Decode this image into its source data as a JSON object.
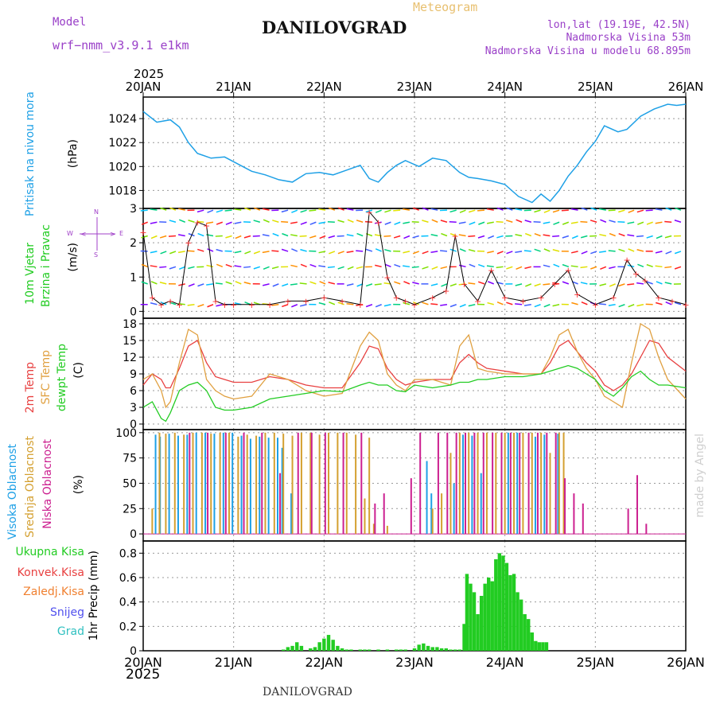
{
  "header": {
    "model_label": "Model",
    "model_name": "wrf−nmm_v3.9.1  e1km",
    "title": "DANILOVGRAD",
    "product": "Meteogram",
    "lonlat": "lon,lat (19.19E, 42.5N)",
    "elevation": "Nadmorska Visina 53m",
    "model_elevation": "Nadmorska Visina u modelu 68.895m",
    "year": "2025",
    "credit": "made by Angel",
    "footer_title": "DANILOVGRAD"
  },
  "colors": {
    "pressure": "#1ea0e6",
    "temp2m": "#e84040",
    "sfc_temp": "#e0a040",
    "dewpt": "#22cc22",
    "cloud_high": "#1ea0e6",
    "cloud_mid": "#d4a030",
    "cloud_low": "#cc2090",
    "precip_total": "#22cc22",
    "precip_conv": "#e84040",
    "precip_frozen": "#f08030",
    "snow": "#5050ee",
    "graupel": "#30c0c0",
    "model_text": "#9a40c8"
  },
  "chart_data": [
    {
      "type": "line",
      "id": "pressure",
      "ylabel_main": "Pritisak na nivou mora",
      "ylabel_unit": "(hPa)",
      "x_ticks": [
        "20JAN",
        "21JAN",
        "22JAN",
        "23JAN",
        "24JAN",
        "25JAN",
        "26JAN"
      ],
      "y_ticks": [
        "1018",
        "1020",
        "1022",
        "1024"
      ],
      "ylim": [
        1016.5,
        1025.8
      ],
      "grid": true,
      "series": [
        {
          "x": [
            0,
            0.15,
            0.3,
            0.4,
            0.5,
            0.6,
            0.75,
            0.9,
            1.0,
            1.2,
            1.35,
            1.5,
            1.65,
            1.8,
            1.95,
            2.1,
            2.25,
            2.4,
            2.5,
            2.6,
            2.7,
            2.8,
            2.9,
            3.05,
            3.2,
            3.35,
            3.5,
            3.6,
            3.7,
            3.85,
            4.0,
            4.15,
            4.3,
            4.4,
            4.5,
            4.6,
            4.7,
            4.8,
            4.9,
            5.0,
            5.1,
            5.25,
            5.35,
            5.5,
            5.65,
            5.8,
            5.9,
            6.0
          ],
          "y": [
            1024.6,
            1023.7,
            1023.9,
            1023.3,
            1022.0,
            1021.1,
            1020.7,
            1020.8,
            1020.4,
            1019.6,
            1019.3,
            1018.9,
            1018.7,
            1019.4,
            1019.5,
            1019.3,
            1019.7,
            1020.1,
            1019.0,
            1018.7,
            1019.5,
            1020.1,
            1020.5,
            1020.0,
            1020.7,
            1020.5,
            1019.5,
            1019.1,
            1019.0,
            1018.8,
            1018.5,
            1017.5,
            1017.0,
            1017.7,
            1017.1,
            1018.0,
            1019.2,
            1020.1,
            1021.2,
            1022.1,
            1023.4,
            1022.9,
            1023.1,
            1024.2,
            1024.8,
            1025.2,
            1025.1,
            1025.2
          ]
        }
      ]
    },
    {
      "type": "line",
      "id": "wind",
      "ylabel_main": "10m Vjetar",
      "ylabel_main2": "Brzina i Pravac",
      "ylabel_unit": "(m/s)",
      "compass": {
        "n": "N",
        "w": "W",
        "e": "E",
        "s": "S"
      },
      "y_ticks": [
        "0",
        "1",
        "2",
        "3"
      ],
      "ylim": [
        -0.2,
        3.0
      ],
      "grid": true,
      "series": [
        {
          "x": [
            0,
            0.1,
            0.2,
            0.3,
            0.4,
            0.5,
            0.6,
            0.7,
            0.8,
            0.9,
            1.0,
            1.2,
            1.4,
            1.6,
            1.8,
            2.0,
            2.2,
            2.4,
            2.5,
            2.6,
            2.7,
            2.8,
            2.9,
            3.0,
            3.2,
            3.35,
            3.45,
            3.55,
            3.7,
            3.85,
            4.0,
            4.2,
            4.4,
            4.55,
            4.7,
            4.8,
            5.0,
            5.2,
            5.35,
            5.45,
            5.55,
            5.7,
            5.85,
            6.0
          ],
          "y": [
            2.3,
            0.4,
            0.2,
            0.3,
            0.2,
            2.0,
            2.6,
            2.5,
            0.3,
            0.2,
            0.2,
            0.2,
            0.2,
            0.3,
            0.3,
            0.4,
            0.3,
            0.2,
            2.9,
            2.6,
            1.0,
            0.4,
            0.3,
            0.2,
            0.4,
            0.6,
            2.2,
            0.8,
            0.3,
            1.2,
            0.4,
            0.3,
            0.4,
            0.8,
            1.2,
            0.5,
            0.2,
            0.4,
            1.5,
            1.1,
            0.9,
            0.4,
            0.3,
            0.2
          ]
        }
      ]
    },
    {
      "type": "line",
      "id": "temperature",
      "ylabel_a": "2m Temp",
      "ylabel_b": "SFC Temp",
      "ylabel_c": "dewpt Temp",
      "ylabel_unit": "(C)",
      "y_ticks": [
        "0",
        "3",
        "6",
        "9",
        "12",
        "15",
        "18"
      ],
      "ylim": [
        -1,
        19
      ],
      "grid": true,
      "series": [
        {
          "name": "2m Temp",
          "x": [
            0,
            0.1,
            0.2,
            0.25,
            0.3,
            0.4,
            0.5,
            0.6,
            0.7,
            0.8,
            0.9,
            1.0,
            1.2,
            1.4,
            1.6,
            1.8,
            2.0,
            2.2,
            2.4,
            2.5,
            2.6,
            2.7,
            2.8,
            2.9,
            3.0,
            3.2,
            3.4,
            3.5,
            3.6,
            3.7,
            3.8,
            4.0,
            4.2,
            4.4,
            4.5,
            4.6,
            4.7,
            4.8,
            4.9,
            5.0,
            5.1,
            5.2,
            5.3,
            5.4,
            5.5,
            5.6,
            5.7,
            5.8,
            6.0
          ],
          "y": [
            7,
            9,
            8,
            6.5,
            6.5,
            10,
            14,
            15,
            11,
            8.5,
            8,
            7.5,
            7.5,
            8.5,
            8,
            7,
            6.5,
            6.5,
            11,
            14,
            13.5,
            10,
            8,
            7,
            7.5,
            8,
            8,
            11,
            12.5,
            11,
            10,
            9.5,
            9,
            9,
            11,
            14,
            15,
            13,
            11,
            9.5,
            7,
            6,
            7,
            9,
            12,
            15,
            14.5,
            12,
            9.5
          ]
        },
        {
          "name": "SFC Temp",
          "x": [
            0,
            0.1,
            0.2,
            0.25,
            0.3,
            0.4,
            0.5,
            0.6,
            0.7,
            0.8,
            0.9,
            1.0,
            1.2,
            1.4,
            1.6,
            1.8,
            2.0,
            2.2,
            2.4,
            2.5,
            2.6,
            2.7,
            2.8,
            2.9,
            3.0,
            3.2,
            3.4,
            3.5,
            3.6,
            3.7,
            3.8,
            4.0,
            4.2,
            4.4,
            4.5,
            4.6,
            4.7,
            4.8,
            4.9,
            5.0,
            5.1,
            5.2,
            5.3,
            5.4,
            5.5,
            5.6,
            5.7,
            5.8,
            6.0
          ],
          "y": [
            8,
            9,
            6,
            3,
            4,
            11,
            17,
            16,
            8,
            6,
            5,
            4.5,
            5,
            9,
            8,
            6,
            5,
            5.5,
            14,
            16.5,
            15,
            9,
            7,
            6,
            8,
            8,
            7,
            14,
            16,
            10,
            9.5,
            9,
            9,
            9,
            12,
            16,
            17,
            13,
            10,
            8,
            5,
            4,
            3,
            11,
            18,
            17,
            12,
            8,
            4.5
          ]
        },
        {
          "name": "dewpt Temp",
          "x": [
            0,
            0.1,
            0.2,
            0.25,
            0.3,
            0.4,
            0.5,
            0.6,
            0.7,
            0.8,
            0.9,
            1.0,
            1.2,
            1.4,
            1.6,
            1.8,
            2.0,
            2.2,
            2.4,
            2.5,
            2.6,
            2.7,
            2.8,
            2.9,
            3.0,
            3.2,
            3.4,
            3.5,
            3.6,
            3.7,
            3.8,
            4.0,
            4.2,
            4.4,
            4.5,
            4.6,
            4.7,
            4.8,
            4.9,
            5.0,
            5.1,
            5.2,
            5.3,
            5.4,
            5.5,
            5.6,
            5.7,
            5.8,
            6.0
          ],
          "y": [
            3,
            4,
            1,
            0.5,
            2,
            6,
            7,
            7.5,
            6,
            3,
            2.5,
            2.5,
            3,
            4.5,
            5,
            5.5,
            6,
            5.8,
            7,
            7.5,
            7,
            7,
            6,
            5.8,
            7,
            6.5,
            7,
            7.5,
            7.5,
            8,
            8,
            8.5,
            8.5,
            9,
            9.5,
            10,
            10.5,
            10,
            9,
            8,
            6,
            5,
            6.5,
            8.5,
            9.5,
            8,
            7,
            7,
            6.5
          ]
        }
      ]
    },
    {
      "type": "bar",
      "id": "clouds",
      "ylabel_a": "Visoka Oblacnost",
      "ylabel_b": "Srednja Oblacnost",
      "ylabel_c": "Niska Oblacnost",
      "ylabel_unit": "(%)",
      "y_ticks": [
        "0",
        "25",
        "50",
        "75",
        "100"
      ],
      "ylim": [
        -7,
        103
      ],
      "grid": true,
      "series": [
        {
          "name": "Visoka Oblacnost",
          "x": [
            0.15,
            0.2,
            0.3,
            0.4,
            0.5,
            0.6,
            0.7,
            0.8,
            0.9,
            1.0,
            1.1,
            1.2,
            1.3,
            1.4,
            1.5,
            1.55,
            1.65,
            3.15,
            3.2,
            3.45,
            3.55,
            3.65,
            3.75,
            4.05,
            4.15,
            4.35,
            4.45,
            4.6
          ],
          "values": [
            98,
            96,
            99,
            97,
            98,
            100,
            100,
            99,
            100,
            100,
            97,
            94,
            96,
            95,
            95,
            85,
            40,
            72,
            40,
            50,
            98,
            97,
            60,
            100,
            100,
            96,
            98,
            99
          ]
        },
        {
          "name": "Srednja Oblacnost",
          "x": [
            0.1,
            0.18,
            0.25,
            0.35,
            0.45,
            0.55,
            0.65,
            0.75,
            0.85,
            0.95,
            1.05,
            1.15,
            1.25,
            1.35,
            1.45,
            1.55,
            1.65,
            1.75,
            1.85,
            1.95,
            2.05,
            2.15,
            2.25,
            2.35,
            2.45,
            2.5,
            2.55,
            2.7,
            3.2,
            3.3,
            3.4,
            3.5,
            3.6,
            3.7,
            3.8,
            3.9,
            4.0,
            4.1,
            4.2,
            4.3,
            4.4,
            4.5,
            4.6,
            4.65
          ],
          "values": [
            25,
            100,
            99,
            100,
            98,
            100,
            100,
            99,
            100,
            100,
            96,
            98,
            97,
            100,
            100,
            99,
            97,
            100,
            100,
            98,
            100,
            100,
            100,
            98,
            35,
            95,
            10,
            8,
            25,
            40,
            80,
            100,
            100,
            100,
            100,
            100,
            100,
            100,
            100,
            100,
            100,
            80,
            100,
            100
          ]
        },
        {
          "name": "Niska Oblacnost",
          "x": [
            0.5,
            0.7,
            0.9,
            1.1,
            1.3,
            1.5,
            1.7,
            1.85,
            2.0,
            2.2,
            2.4,
            2.55,
            2.65,
            2.95,
            3.05,
            3.25,
            3.35,
            3.45,
            3.55,
            3.65,
            3.75,
            3.85,
            3.95,
            4.05,
            4.15,
            4.25,
            4.35,
            4.45,
            4.55,
            4.65,
            4.75,
            4.85,
            5.35,
            5.45,
            5.55
          ],
          "values": [
            100,
            100,
            100,
            100,
            100,
            60,
            100,
            100,
            100,
            100,
            100,
            30,
            40,
            55,
            100,
            100,
            100,
            100,
            100,
            100,
            100,
            100,
            100,
            100,
            100,
            100,
            100,
            100,
            100,
            55,
            40,
            30,
            25,
            58,
            10
          ]
        }
      ]
    },
    {
      "type": "bar",
      "id": "precip",
      "legend": [
        "Ukupna Kisa",
        "Konvek.Kisa",
        "Zaledj.Kisa",
        "Snijeg",
        "Grad"
      ],
      "ylabel_unit": "1hr Precip (mm)",
      "x_ticks": [
        "20JAN",
        "21JAN",
        "22JAN",
        "23JAN",
        "24JAN",
        "25JAN",
        "26JAN"
      ],
      "y_ticks": [
        "0",
        "0.2",
        "0.4",
        "0.6",
        "0.8"
      ],
      "ylim": [
        0,
        0.9
      ],
      "grid": true,
      "series": [
        {
          "name": "Ukupna Kisa",
          "x": [
            1.55,
            1.6,
            1.65,
            1.7,
            1.75,
            1.85,
            1.9,
            1.95,
            2.0,
            2.05,
            2.1,
            2.15,
            2.2,
            2.25,
            2.3,
            2.4,
            2.45,
            2.5,
            2.6,
            2.7,
            2.8,
            2.85,
            2.9,
            3.0,
            3.05,
            3.1,
            3.15,
            3.2,
            3.25,
            3.3,
            3.35,
            3.4,
            3.45,
            3.5,
            3.55,
            3.58,
            3.62,
            3.66,
            3.7,
            3.74,
            3.78,
            3.82,
            3.86,
            3.9,
            3.94,
            3.98,
            4.02,
            4.06,
            4.1,
            4.14,
            4.18,
            4.22,
            4.26,
            4.3,
            4.34,
            4.38,
            4.42,
            4.46
          ],
          "values": [
            0.01,
            0.03,
            0.04,
            0.07,
            0.04,
            0.02,
            0.03,
            0.07,
            0.1,
            0.13,
            0.09,
            0.04,
            0.02,
            0.01,
            0.01,
            0.01,
            0.01,
            0.01,
            0.01,
            0.01,
            0.01,
            0.01,
            0.01,
            0.02,
            0.05,
            0.06,
            0.04,
            0.03,
            0.03,
            0.02,
            0.02,
            0.01,
            0.01,
            0.01,
            0.22,
            0.63,
            0.55,
            0.48,
            0.3,
            0.45,
            0.55,
            0.6,
            0.57,
            0.75,
            0.8,
            0.78,
            0.72,
            0.62,
            0.63,
            0.48,
            0.42,
            0.3,
            0.26,
            0.15,
            0.08,
            0.07,
            0.07,
            0.07
          ]
        }
      ]
    }
  ]
}
